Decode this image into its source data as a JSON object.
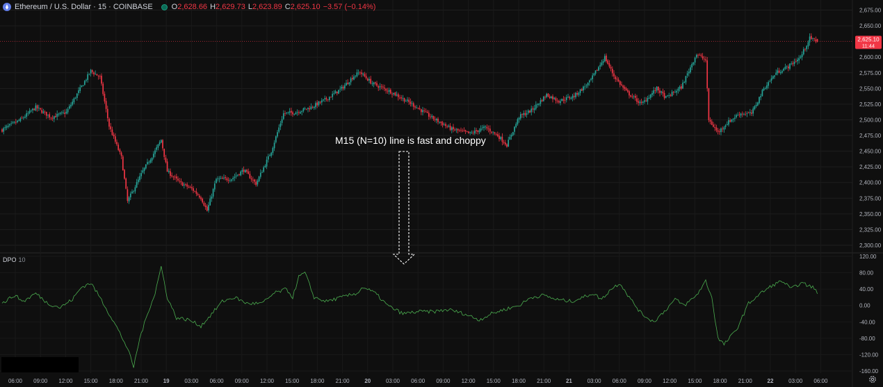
{
  "header": {
    "symbol": "Ethereum / U.S. Dollar · 15 · COINBASE",
    "icon": "ethereum-icon",
    "status_icon": "market-open-dot-icon",
    "open_label": "O",
    "open": "2,628.66",
    "high_label": "H",
    "high": "2,629.73",
    "low_label": "L",
    "low": "2,623.89",
    "close_label": "C",
    "close": "2,625.10",
    "change": "−3.57 (−0.14%)"
  },
  "price_badge": {
    "price": "2,625.10",
    "countdown": "11:44",
    "color": "#f23645"
  },
  "indicator": {
    "name": "DPO",
    "param": "10",
    "color": "#4caf50"
  },
  "annotation": {
    "text": "M15 (N=10) line is fast and choppy"
  },
  "colors": {
    "up": "#26a69a",
    "down": "#f23645",
    "background": "#0f0f0f",
    "grid": "#1f1f1f"
  },
  "settings_icon": "gear-icon",
  "chart_data": [
    {
      "type": "candlestick",
      "title": "Ethereum / U.S. Dollar · 15 · COINBASE",
      "ylim": [
        2290,
        2680
      ],
      "y_ticks": [
        "2,675.00",
        "2,650.00",
        "2,600.00",
        "2,575.00",
        "2,550.00",
        "2,525.00",
        "2,500.00",
        "2,475.00",
        "2,450.00",
        "2,425.00",
        "2,400.00",
        "2,375.00",
        "2,350.00",
        "2,325.00",
        "2,300.00"
      ],
      "close_anchors": [
        [
          0,
          2484
        ],
        [
          12,
          2500
        ],
        [
          22,
          2520
        ],
        [
          32,
          2504
        ],
        [
          42,
          2512
        ],
        [
          50,
          2545
        ],
        [
          58,
          2578
        ],
        [
          64,
          2568
        ],
        [
          70,
          2490
        ],
        [
          78,
          2440
        ],
        [
          82,
          2370
        ],
        [
          92,
          2418
        ],
        [
          100,
          2450
        ],
        [
          104,
          2468
        ],
        [
          108,
          2418
        ],
        [
          116,
          2400
        ],
        [
          124,
          2390
        ],
        [
          130,
          2376
        ],
        [
          134,
          2355
        ],
        [
          140,
          2405
        ],
        [
          150,
          2406
        ],
        [
          158,
          2420
        ],
        [
          166,
          2398
        ],
        [
          176,
          2450
        ],
        [
          184,
          2510
        ],
        [
          192,
          2512
        ],
        [
          202,
          2520
        ],
        [
          212,
          2533
        ],
        [
          222,
          2550
        ],
        [
          230,
          2570
        ],
        [
          234,
          2576
        ],
        [
          242,
          2558
        ],
        [
          254,
          2545
        ],
        [
          268,
          2525
        ],
        [
          280,
          2505
        ],
        [
          294,
          2485
        ],
        [
          306,
          2478
        ],
        [
          316,
          2488
        ],
        [
          324,
          2475
        ],
        [
          330,
          2460
        ],
        [
          338,
          2505
        ],
        [
          346,
          2515
        ],
        [
          356,
          2540
        ],
        [
          364,
          2530
        ],
        [
          374,
          2538
        ],
        [
          384,
          2560
        ],
        [
          394,
          2600
        ],
        [
          400,
          2570
        ],
        [
          408,
          2545
        ],
        [
          418,
          2525
        ],
        [
          428,
          2550
        ],
        [
          434,
          2535
        ],
        [
          444,
          2552
        ],
        [
          454,
          2605
        ],
        [
          460,
          2595
        ],
        [
          462,
          2500
        ],
        [
          468,
          2480
        ],
        [
          474,
          2495
        ],
        [
          482,
          2510
        ],
        [
          490,
          2510
        ],
        [
          498,
          2550
        ],
        [
          506,
          2575
        ],
        [
          514,
          2585
        ],
        [
          522,
          2600
        ],
        [
          528,
          2630
        ],
        [
          533,
          2625.1
        ]
      ],
      "last": {
        "open": 2628.66,
        "high": 2629.73,
        "low": 2623.89,
        "close": 2625.1
      }
    },
    {
      "type": "line",
      "title": "DPO 10",
      "ylim": [
        -165,
        125
      ],
      "y_ticks": [
        "120.00",
        "80.00",
        "40.00",
        "0.00",
        "-40.00",
        "-80.00",
        "-120.00",
        "-160.00"
      ],
      "x_ticks": [
        "06:00",
        "09:00",
        "12:00",
        "15:00",
        "18:00",
        "21:00",
        "19",
        "03:00",
        "06:00",
        "09:00",
        "12:00",
        "15:00",
        "18:00",
        "21:00",
        "20",
        "03:00",
        "06:00",
        "09:00",
        "12:00",
        "15:00",
        "18:00",
        "21:00",
        "21",
        "03:00",
        "06:00",
        "09:00",
        "12:00",
        "15:00",
        "18:00",
        "21:00",
        "22",
        "03:00",
        "06:00"
      ],
      "anchors": [
        [
          0,
          5
        ],
        [
          8,
          25
        ],
        [
          14,
          10
        ],
        [
          22,
          30
        ],
        [
          30,
          5
        ],
        [
          38,
          -5
        ],
        [
          46,
          15
        ],
        [
          52,
          45
        ],
        [
          58,
          55
        ],
        [
          64,
          20
        ],
        [
          70,
          -20
        ],
        [
          76,
          -60
        ],
        [
          82,
          -105
        ],
        [
          86,
          -150
        ],
        [
          90,
          -80
        ],
        [
          96,
          -10
        ],
        [
          100,
          30
        ],
        [
          104,
          95
        ],
        [
          108,
          20
        ],
        [
          114,
          -30
        ],
        [
          122,
          -35
        ],
        [
          130,
          -50
        ],
        [
          136,
          -25
        ],
        [
          144,
          10
        ],
        [
          152,
          20
        ],
        [
          160,
          5
        ],
        [
          170,
          5
        ],
        [
          178,
          30
        ],
        [
          186,
          40
        ],
        [
          190,
          20
        ],
        [
          194,
          70
        ],
        [
          198,
          80
        ],
        [
          204,
          20
        ],
        [
          212,
          10
        ],
        [
          222,
          20
        ],
        [
          232,
          30
        ],
        [
          236,
          45
        ],
        [
          244,
          30
        ],
        [
          252,
          0
        ],
        [
          262,
          -20
        ],
        [
          272,
          -15
        ],
        [
          282,
          -15
        ],
        [
          292,
          -10
        ],
        [
          302,
          -20
        ],
        [
          312,
          -35
        ],
        [
          320,
          -20
        ],
        [
          328,
          -10
        ],
        [
          338,
          0
        ],
        [
          346,
          20
        ],
        [
          354,
          25
        ],
        [
          362,
          15
        ],
        [
          372,
          10
        ],
        [
          380,
          20
        ],
        [
          386,
          30
        ],
        [
          392,
          15
        ],
        [
          398,
          40
        ],
        [
          404,
          55
        ],
        [
          410,
          20
        ],
        [
          418,
          -20
        ],
        [
          426,
          -40
        ],
        [
          434,
          -10
        ],
        [
          440,
          15
        ],
        [
          446,
          0
        ],
        [
          454,
          25
        ],
        [
          460,
          60
        ],
        [
          464,
          20
        ],
        [
          468,
          -80
        ],
        [
          472,
          -95
        ],
        [
          480,
          -60
        ],
        [
          488,
          5
        ],
        [
          496,
          30
        ],
        [
          504,
          50
        ],
        [
          510,
          60
        ],
        [
          516,
          40
        ],
        [
          522,
          55
        ],
        [
          530,
          45
        ],
        [
          533,
          30
        ]
      ]
    }
  ]
}
